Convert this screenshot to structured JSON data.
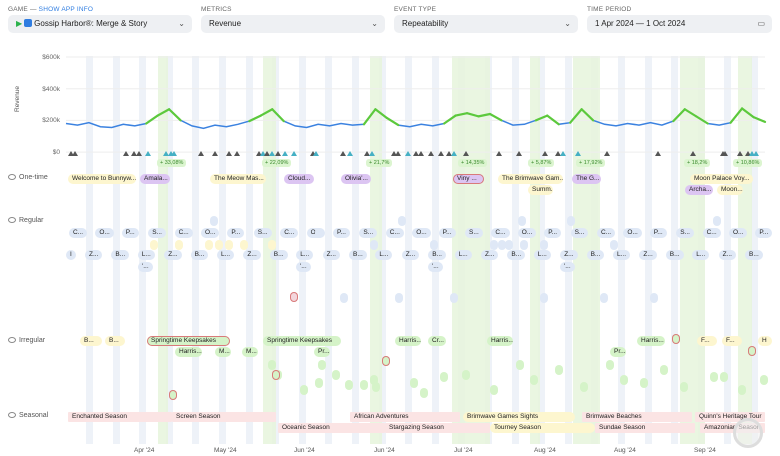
{
  "filters": {
    "game": {
      "label": "GAME —",
      "link": "SHOW APP INFO",
      "value": "Gossip Harbor®: Merge & Story"
    },
    "metrics": {
      "label": "METRICS",
      "value": "Revenue"
    },
    "event_type": {
      "label": "EVENT TYPE",
      "value": "Repeatability"
    },
    "time_period": {
      "label": "TIME PERIOD",
      "value": "1 Apr 2024 — 1 Oct 2024"
    }
  },
  "chart_data": {
    "type": "line",
    "ylabel": "Revenue",
    "yticks": [
      "$600k",
      "$400k",
      "$200k",
      "$0"
    ],
    "ylim": [
      0,
      600
    ],
    "x_step_days": 3,
    "values_k": [
      180,
      170,
      185,
      160,
      155,
      175,
      165,
      180,
      230,
      270,
      200,
      165,
      150,
      170,
      160,
      175,
      195,
      230,
      270,
      195,
      165,
      155,
      175,
      165,
      180,
      170,
      175,
      270,
      215,
      170,
      160,
      175,
      165,
      180,
      230,
      245,
      225,
      240,
      200,
      170,
      175,
      200,
      230,
      175,
      185,
      270,
      200,
      175,
      165,
      180,
      170,
      185,
      170,
      195,
      270,
      225,
      180,
      170,
      185,
      275,
      220,
      190
    ],
    "line_color": "#3b82e0",
    "uplift_color": "#5cc93c",
    "xticks": [
      "Apr '24",
      "May '24",
      "Jun '24",
      "Jun '24",
      "Jul '24",
      "Aug '24",
      "Aug '24",
      "Sep '24"
    ]
  },
  "uplifts": [
    "+ 33,08%",
    "+ 22,09%",
    "+ 21,7%",
    "+ 14,35%",
    "+ 5,87%",
    "+ 17,92%",
    "+ 18,2%",
    "+ 10,86%"
  ],
  "rows": {
    "one_time": "One-time",
    "regular": "Regular",
    "irregular": "Irregular",
    "seasonal": "Seasonal"
  },
  "one_time": [
    "Welcome to Bunnyw...",
    "Amala...",
    "The Meow Mas...",
    "Cloud...",
    "Olivia'...",
    "Viny ...",
    "The Brimwave Gam...",
    "Summ...",
    "The G...",
    "Moon Palace Voy...",
    "Archa...",
    "Moon..."
  ],
  "regular_row1": [
    "C...",
    "O...",
    "P...",
    "S..."
  ],
  "regular_row2": [
    "I",
    "Z...",
    "B...",
    "L..."
  ],
  "regular_row3": "'...",
  "irregular": [
    "B...",
    "B...",
    "Springtime Keepsakes",
    "Springtime Keepsakes",
    "Harris...",
    "Cr...",
    "Harris...",
    "Harris...",
    "F...",
    "F...",
    "H",
    "Harris...",
    "M...",
    "M...",
    "Pr...",
    "Pr..."
  ],
  "seasonal": [
    "Enchanted Season",
    "Screen Season",
    "African Adventures",
    "Brimwave Games Sights",
    "Brimwave Beaches",
    "Quinn's Heritage Tour",
    "Oceanic Season",
    "Stargazing Season",
    "Tourney Season",
    "Sundae Season",
    "Amazonian Season"
  ],
  "colors": {
    "one_time_yellow": "#fdf6cf",
    "one_time_purple": "#dcc5f2",
    "regular": "#dfe8f6",
    "irregular": "#d5f3c8",
    "seasonal": "#fbe4e4"
  }
}
